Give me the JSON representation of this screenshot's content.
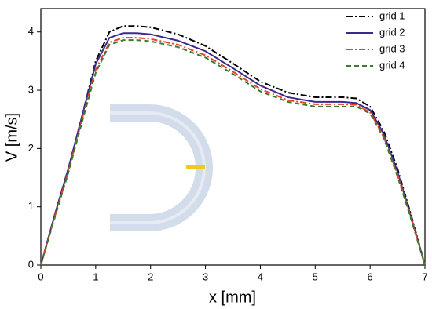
{
  "chart_data": {
    "type": "line",
    "xlabel": "x [mm]",
    "ylabel": "V [m/s]",
    "x": [
      0,
      0.25,
      0.5,
      0.75,
      1.0,
      1.25,
      1.5,
      1.75,
      2.0,
      2.5,
      3.0,
      3.5,
      4.0,
      4.5,
      5.0,
      5.5,
      5.75,
      6.0,
      6.25,
      6.5,
      6.75,
      7.0
    ],
    "series": [
      {
        "name": "grid 1",
        "color": "#000000",
        "values": [
          0,
          0.85,
          1.65,
          2.55,
          3.5,
          4.0,
          4.1,
          4.1,
          4.08,
          3.96,
          3.76,
          3.46,
          3.15,
          2.96,
          2.88,
          2.88,
          2.86,
          2.72,
          2.3,
          1.65,
          0.85,
          0
        ]
      },
      {
        "name": "grid 2",
        "color": "#3b2a8c",
        "values": [
          0,
          0.85,
          1.65,
          2.55,
          3.45,
          3.9,
          3.98,
          3.98,
          3.96,
          3.85,
          3.67,
          3.38,
          3.08,
          2.88,
          2.8,
          2.8,
          2.78,
          2.66,
          2.25,
          1.6,
          0.82,
          0
        ]
      },
      {
        "name": "grid 3",
        "color": "#e8402a",
        "values": [
          0,
          0.82,
          1.6,
          2.5,
          3.35,
          3.82,
          3.9,
          3.9,
          3.88,
          3.78,
          3.6,
          3.32,
          3.02,
          2.83,
          2.76,
          2.76,
          2.75,
          2.62,
          2.2,
          1.55,
          0.8,
          0
        ]
      },
      {
        "name": "grid 4",
        "color": "#3a7a2a",
        "values": [
          0,
          0.8,
          1.58,
          2.45,
          3.3,
          3.78,
          3.86,
          3.86,
          3.84,
          3.74,
          3.56,
          3.28,
          2.98,
          2.8,
          2.72,
          2.72,
          2.72,
          2.6,
          2.18,
          1.52,
          0.78,
          0
        ]
      }
    ],
    "xlim": [
      0,
      7
    ],
    "xticks": [
      0,
      1,
      2,
      3,
      4,
      5,
      6,
      7
    ],
    "ylim": [
      0,
      4.4
    ],
    "yticks": [
      0,
      1,
      2,
      3,
      4
    ],
    "legend": "upper right"
  }
}
